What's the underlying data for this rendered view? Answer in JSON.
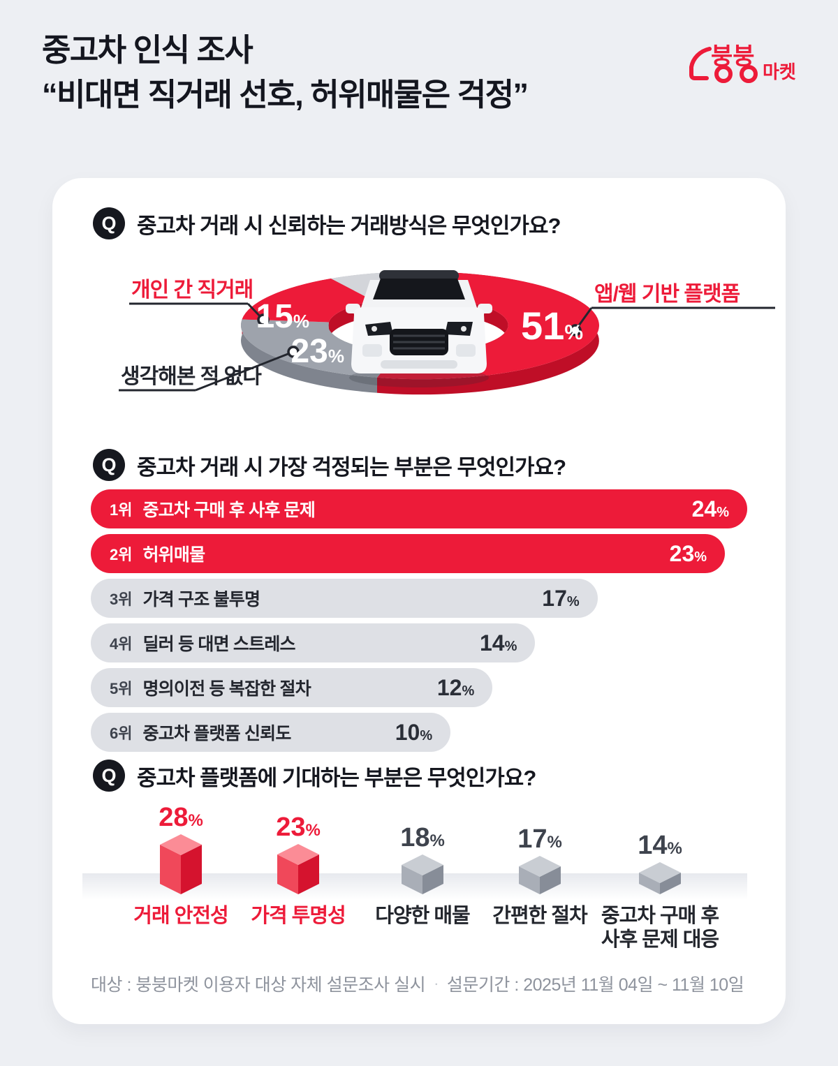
{
  "header": {
    "title_line1": "중고차 인식 조사",
    "title_line2": "“비대면 직거래 선호, 허위매물은 걱정”",
    "logo_text_main": "붕붕",
    "logo_text_sub": "마켓",
    "logo_color": "#ED1B39"
  },
  "questions": {
    "badge": "Q",
    "q1": "중고차 거래 시 신뢰하는 거래방식은 무엇인가요?",
    "q2": "중고차 거래 시 가장 걱정되는 부분은 무엇인가요?",
    "q3": "중고차 플랫폼에 기대하는 부분은 무엇인가요?"
  },
  "footer": {
    "target": "대상 : 붕붕마켓 이용자 대상 자체 설문조사 실시",
    "separator": "·",
    "period": "설문기간 : 2025년 11월 04일 ~ 11월 10일"
  },
  "chart_data": [
    {
      "type": "pie",
      "donut": true,
      "title": "중고차 거래 시 신뢰하는 거래방식은 무엇인가요?",
      "unit": "%",
      "start_angle_deg": 10,
      "center_image": "white-suv-front-view",
      "legend_position": "callout-labels",
      "slices": [
        {
          "label": "앱/웹 기반 플랫폼",
          "value": 51,
          "color": "#ED1B39",
          "depth_color": "#BF0E27",
          "label_color": "#ED1B39"
        },
        {
          "label": "생각해본 적 없다",
          "value": 23,
          "color": "#9EA3AC",
          "depth_color": "#7F848E",
          "label_color": "#23262E"
        },
        {
          "label": "개인 간 직거래",
          "value": 15,
          "color": "#ED1B39",
          "depth_color": "#BF0E27",
          "label_color": "#ED1B39"
        },
        {
          "label": "",
          "value": 11,
          "color": "#D3D5DA",
          "depth_color": "#AEB2BA",
          "label_color": ""
        }
      ]
    },
    {
      "type": "bar",
      "orientation": "horizontal",
      "title": "중고차 거래 시 가장 걱정되는 부분은 무엇인가요?",
      "unit": "%",
      "highlight_color": "#ED1B39",
      "base_color": "#DEE0E5",
      "bars": [
        {
          "rank": "1위",
          "label": "중고차 구매 후 사후 문제",
          "value": 24,
          "highlight": true,
          "width_pct": 100
        },
        {
          "rank": "2위",
          "label": "허위매물",
          "value": 23,
          "highlight": true,
          "width_pct": 96.6
        },
        {
          "rank": "3위",
          "label": "가격 구조 불투명",
          "value": 17,
          "highlight": false,
          "width_pct": 77.2
        },
        {
          "rank": "4위",
          "label": "딜러 등 대면 스트레스",
          "value": 14,
          "highlight": false,
          "width_pct": 67.7
        },
        {
          "rank": "5위",
          "label": "명의이전 등 복잡한 절차",
          "value": 12,
          "highlight": false,
          "width_pct": 61.2
        },
        {
          "rank": "6위",
          "label": "중고차 플랫폼 신뢰도",
          "value": 10,
          "highlight": false,
          "width_pct": 54.8
        }
      ]
    },
    {
      "type": "bar",
      "style": "3d-cube-columns",
      "title": "중고차 플랫폼에 기대하는 부분은 무엇인가요?",
      "unit": "%",
      "cube_colors": {
        "highlight": {
          "top": "#FB8C96",
          "left": "#F0485A",
          "right": "#D5132E"
        },
        "base": {
          "top": "#C9CDD3",
          "left": "#A9AEB7",
          "right": "#878D98"
        }
      },
      "value_label_colors": {
        "highlight": "#ED1B39",
        "base": "#3E434D"
      },
      "category_label_colors": {
        "highlight": "#ED1B39",
        "base": "#23262D"
      },
      "columns": [
        {
          "label": "거래 안전성",
          "value": 28,
          "highlight": true
        },
        {
          "label": "가격 투명성",
          "value": 23,
          "highlight": true
        },
        {
          "label": "다양한 매물",
          "value": 18,
          "highlight": false
        },
        {
          "label": "간편한 절차",
          "value": 17,
          "highlight": false
        },
        {
          "label": "중고차 구매 후\n사후 문제 대응",
          "value": 14,
          "highlight": false
        }
      ]
    }
  ]
}
